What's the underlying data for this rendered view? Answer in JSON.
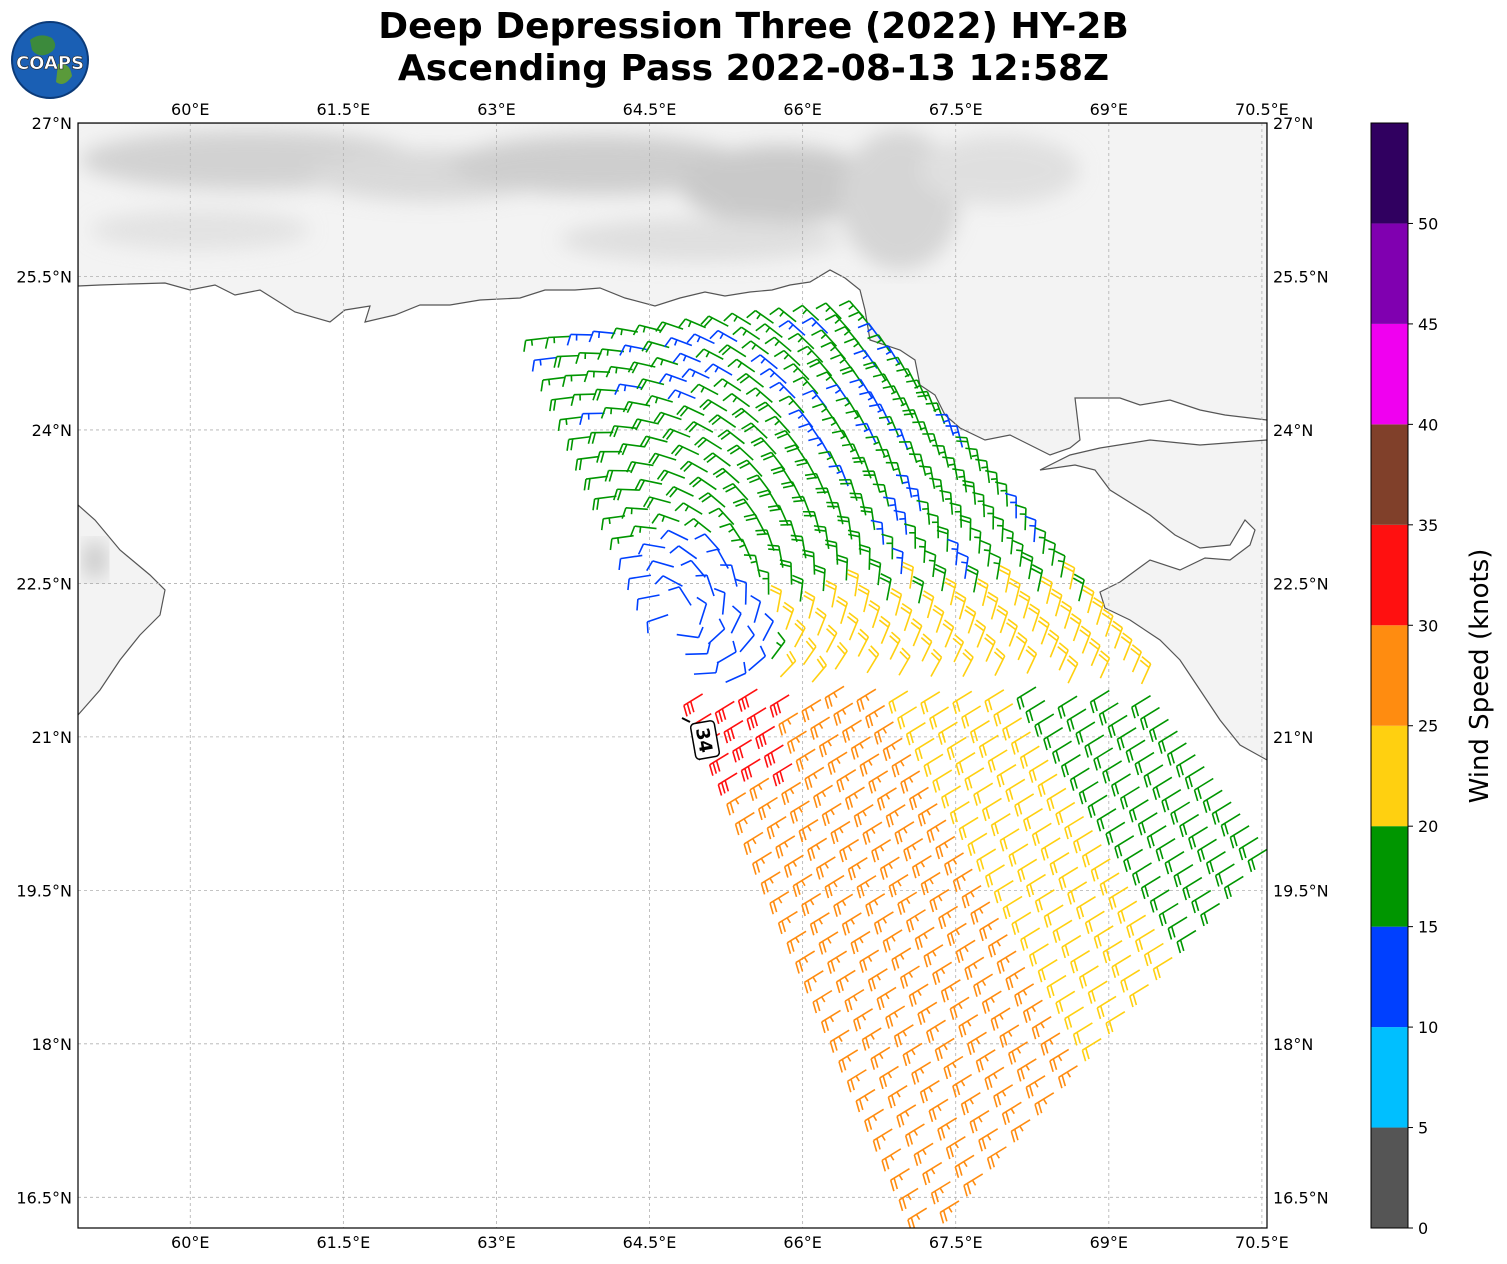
{
  "title": {
    "line1": "Deep Depression Three (2022) HY-2B",
    "line2": "Ascending Pass 2022-08-13 12:58Z"
  },
  "logo": {
    "text": "COAPS",
    "icon": "globe-logo-icon"
  },
  "map": {
    "lon_range": [
      58.9,
      70.55
    ],
    "lat_range": [
      16.2,
      27.0
    ],
    "lon_ticks": [
      {
        "value": 60.0,
        "label": "60°E"
      },
      {
        "value": 61.5,
        "label": "61.5°E"
      },
      {
        "value": 63.0,
        "label": "63°E"
      },
      {
        "value": 64.5,
        "label": "64.5°E"
      },
      {
        "value": 66.0,
        "label": "66°E"
      },
      {
        "value": 67.5,
        "label": "67.5°E"
      },
      {
        "value": 69.0,
        "label": "69°E"
      },
      {
        "value": 70.5,
        "label": "70.5°E"
      }
    ],
    "lat_ticks": [
      {
        "value": 27.0,
        "label": "27°N"
      },
      {
        "value": 25.5,
        "label": "25.5°N"
      },
      {
        "value": 24.0,
        "label": "24°N"
      },
      {
        "value": 22.5,
        "label": "22.5°N"
      },
      {
        "value": 21.0,
        "label": "21°N"
      },
      {
        "value": 19.5,
        "label": "19.5°N"
      },
      {
        "value": 18.0,
        "label": "18°N"
      },
      {
        "value": 16.5,
        "label": "16.5°N"
      }
    ],
    "gridlines": true,
    "storm_center": {
      "lon": 64.75,
      "lat": 22.1
    },
    "contour_label": "34",
    "swath": {
      "corners": [
        [
          63.5,
          24.9
        ],
        [
          66.6,
          25.1
        ],
        [
          70.55,
          19.9
        ],
        [
          67.3,
          16.2
        ]
      ]
    }
  },
  "colorbar": {
    "label": "Wind Speed (knots)",
    "ticks": [
      "0",
      "5",
      "10",
      "15",
      "20",
      "25",
      "30",
      "35",
      "40",
      "45",
      "50"
    ],
    "bins": [
      {
        "min": 0,
        "max": 5,
        "color": "#555555"
      },
      {
        "min": 5,
        "max": 10,
        "color": "#00bfff"
      },
      {
        "min": 10,
        "max": 15,
        "color": "#0040ff"
      },
      {
        "min": 15,
        "max": 20,
        "color": "#009600"
      },
      {
        "min": 20,
        "max": 25,
        "color": "#ffd010"
      },
      {
        "min": 25,
        "max": 30,
        "color": "#ff8c10"
      },
      {
        "min": 30,
        "max": 35,
        "color": "#ff1010"
      },
      {
        "min": 35,
        "max": 40,
        "color": "#80402a"
      },
      {
        "min": 40,
        "max": 45,
        "color": "#f000f0"
      },
      {
        "min": 45,
        "max": 50,
        "color": "#8000b0"
      },
      {
        "min": 50,
        "max": 55,
        "color": "#300060"
      }
    ]
  },
  "colors": {
    "land": "#f4f4f4",
    "ocean": "#ffffff",
    "coastline": "#555555",
    "grid": "#b0b0b0"
  }
}
